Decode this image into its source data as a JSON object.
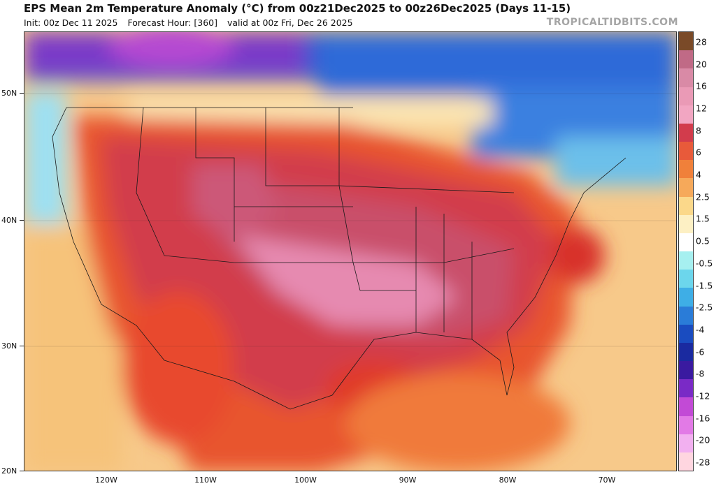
{
  "header": {
    "title": "EPS Mean 2m Temperature Anomaly (°C) from 00z21Dec2025 to 00z26Dec2025 (Days 11-15)",
    "init": "Init: 00z Dec 11 2025",
    "forecast_hour": "Forecast Hour: [360]",
    "valid": "valid at 00z Fri, Dec 26 2025",
    "brand": "TROPICALTIDBITS.COM"
  },
  "map": {
    "lat_labels": [
      "50N",
      "40N",
      "30N",
      "20N"
    ],
    "lon_labels": [
      "120W",
      "110W",
      "100W",
      "90W",
      "80W",
      "70W"
    ],
    "region": "Contiguous United States"
  },
  "colorbar": {
    "labels": [
      "28",
      "20",
      "16",
      "12",
      "8",
      "6",
      "4",
      "2.5",
      "1.5",
      "0.5",
      "-0.5",
      "-1.5",
      "-2.5",
      "-4",
      "-6",
      "-8",
      "-12",
      "-16",
      "-20",
      "-28"
    ],
    "colors": [
      "#7a4a28",
      "#c06a86",
      "#d98aa6",
      "#ea9ab6",
      "#f2a6c2",
      "#d23c4c",
      "#e85a3a",
      "#f0803a",
      "#f6a95a",
      "#fbd88a",
      "#fdf0c4",
      "#ffffff",
      "#a6f0f0",
      "#6cd6ec",
      "#3eaee6",
      "#2a7cd8",
      "#1a4cc0",
      "#1a2aa0",
      "#3a1aa0",
      "#7a2ac6",
      "#c24ad6",
      "#e27ae6",
      "#f2b0f0",
      "#ffd6e0"
    ]
  }
}
